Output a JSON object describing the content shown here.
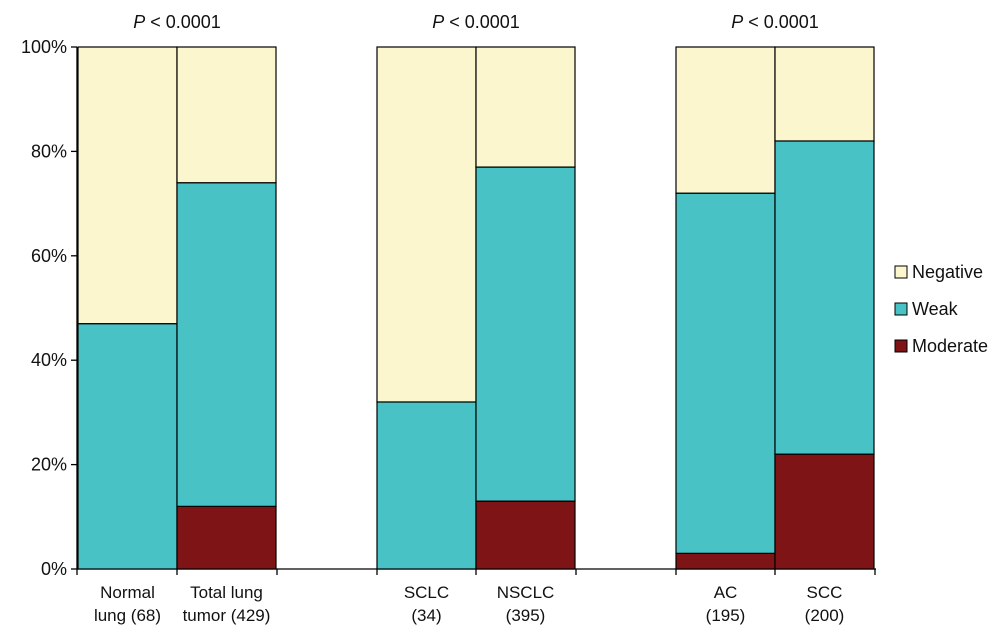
{
  "chart_data": {
    "type": "bar",
    "stacked": true,
    "percent": true,
    "categories": [
      [
        "Normal",
        "lung (68)"
      ],
      [
        "Total lung",
        "tumor (429)"
      ],
      [
        "SCLC",
        "(34)"
      ],
      [
        "NSCLC",
        "(395)"
      ],
      [
        "AC",
        "(195)"
      ],
      [
        "SCC",
        "(200)"
      ]
    ],
    "groups": [
      {
        "members": [
          0,
          1
        ],
        "p_value": "< 0.0001",
        "p_symbol": "P"
      },
      {
        "members": [
          2,
          3
        ],
        "p_value": "< 0.0001",
        "p_symbol": "P"
      },
      {
        "members": [
          4,
          5
        ],
        "p_value": "< 0.0001",
        "p_symbol": "P"
      }
    ],
    "series": [
      {
        "name": "Moderate",
        "color": "#7f1416",
        "values": [
          0,
          12,
          0,
          13,
          3,
          22
        ]
      },
      {
        "name": "Weak",
        "color": "#48c2c5",
        "values": [
          47,
          62,
          32,
          64,
          69,
          60
        ]
      },
      {
        "name": "Negative",
        "color": "#fcf6cf",
        "values": [
          53,
          26,
          68,
          23,
          28,
          18
        ]
      }
    ],
    "legend_order": [
      "Negative",
      "Weak",
      "Moderate"
    ],
    "legend_position": "right",
    "yticks": [
      "0%",
      "20%",
      "40%",
      "60%",
      "80%",
      "100%"
    ],
    "ylim": [
      0,
      100
    ],
    "grid": false
  }
}
